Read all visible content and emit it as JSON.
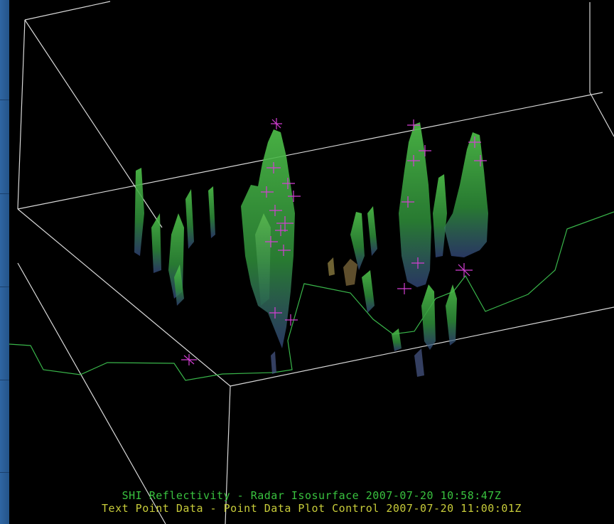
{
  "captions": {
    "line1": "SHI Reflectivity - Radar Isosurface 2007-07-20 10:58:47Z",
    "line2": "Text Point Data - Point Data Plot Control 2007-07-20 11:00:01Z"
  },
  "colors": {
    "background": "#000000",
    "box_lines": "#d8d8d8",
    "map_outline": "#39b54a",
    "isosurface": "#3fae3a",
    "point_markers": "#d43fd4",
    "caption_line1": "#39c23f",
    "caption_line2": "#c8cc3a",
    "window_edge": "#2a5e96"
  },
  "icons": {
    "point_marker": "cross-marker-icon"
  }
}
